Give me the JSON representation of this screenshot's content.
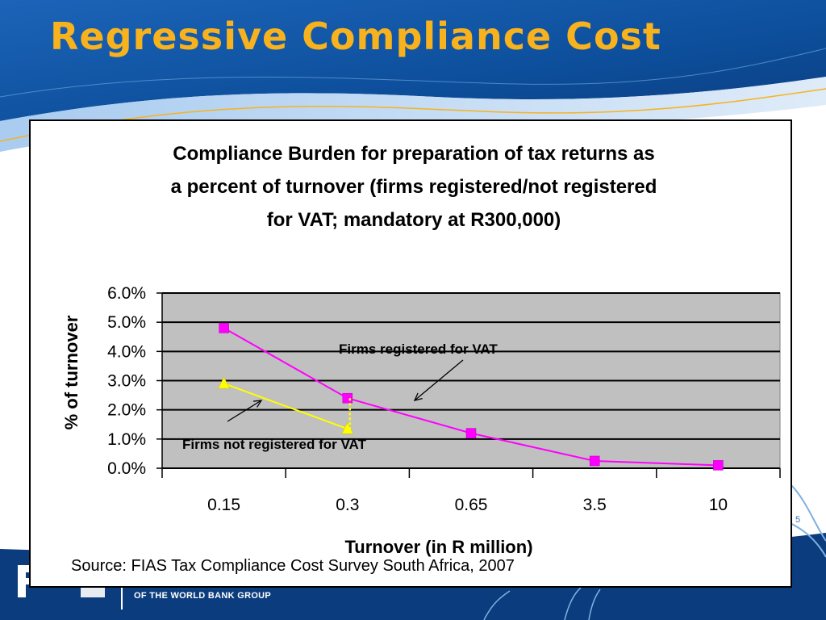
{
  "slide": {
    "title": "Regressive Compliance Cost",
    "slide_number": "5",
    "logo_subtitle": "OF THE WORLD BANK GROUP",
    "logo_mark": "FIAS",
    "colors": {
      "title": "#f7b21e",
      "header_blue": "#0d4f9c",
      "footer_blue": "#0b3c7d"
    }
  },
  "chart_data": {
    "type": "line",
    "title_lines": [
      "Compliance Burden for preparation of tax returns as",
      "a percent of turnover (firms registered/not registered",
      "for VAT; mandatory at R300,000)"
    ],
    "categories": [
      "0.15",
      "0.3",
      "0.65",
      "3.5",
      "10"
    ],
    "xlabel": "Turnover (in R million)",
    "ylabel": "% of turnover",
    "yticks": [
      "0.0%",
      "1.0%",
      "2.0%",
      "3.0%",
      "4.0%",
      "5.0%",
      "6.0%"
    ],
    "ylim": [
      0,
      6
    ],
    "grid": true,
    "plot_background": "#c0c0c0",
    "series": [
      {
        "values": [
          4.8,
          2.4,
          1.2,
          0.25,
          0.1
        ],
        "color": "#ff00ff",
        "marker": "square"
      },
      {
        "values": [
          2.9,
          1.35,
          null,
          null,
          null
        ],
        "color": "#ffff00",
        "marker": "triangle"
      }
    ],
    "annotations": [
      {
        "text": "Firms registered for VAT"
      },
      {
        "text": "Firms not registered for VAT"
      }
    ],
    "source": "Source: FIAS Tax Compliance Cost Survey South Africa, 2007"
  }
}
